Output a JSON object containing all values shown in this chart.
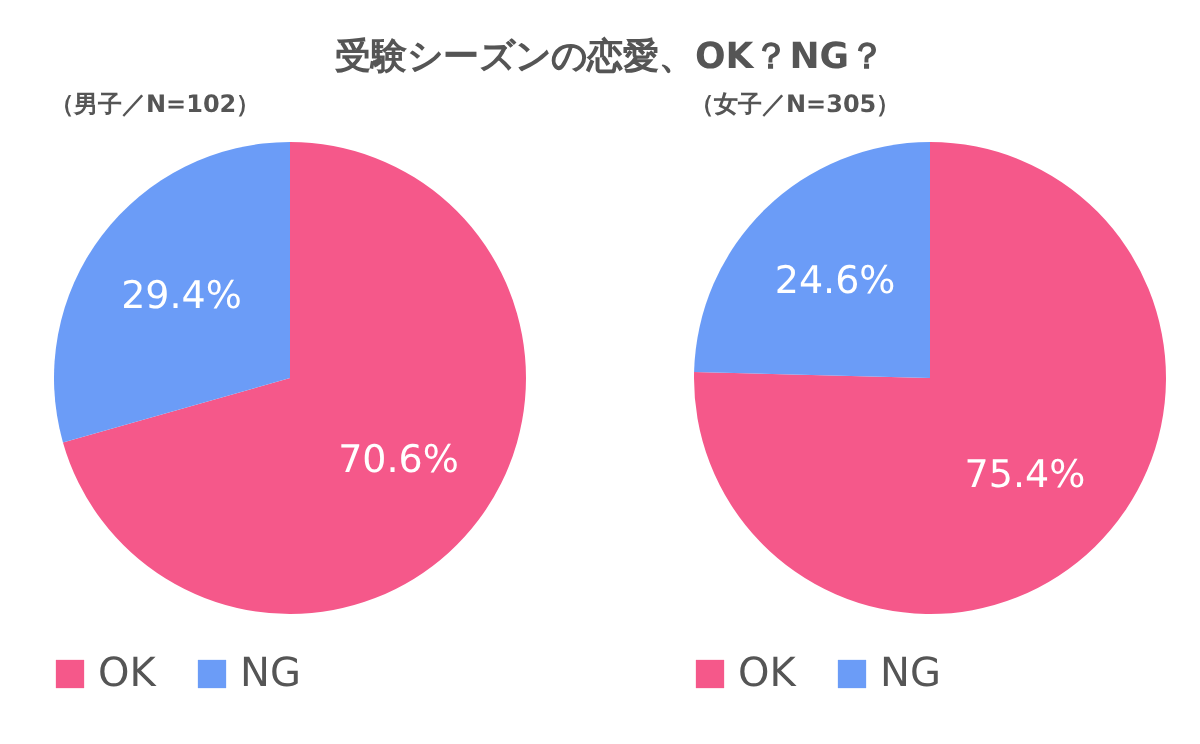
{
  "chart_data": [
    {
      "type": "pie",
      "title": "受験シーズンの恋愛、OK？NG？",
      "subtitle": "（男子／N=102）",
      "categories": [
        "OK",
        "NG"
      ],
      "values": [
        70.6,
        29.4
      ],
      "colors": [
        "#f5588a",
        "#6b9cf7"
      ],
      "value_labels": [
        "70.6%",
        "29.4%"
      ],
      "legend": "bottom"
    },
    {
      "type": "pie",
      "subtitle": "（女子／N=305）",
      "categories": [
        "OK",
        "NG"
      ],
      "values": [
        75.4,
        24.6
      ],
      "colors": [
        "#f5588a",
        "#6b9cf7"
      ],
      "value_labels": [
        "75.4%",
        "24.6%"
      ],
      "legend": "bottom"
    }
  ]
}
